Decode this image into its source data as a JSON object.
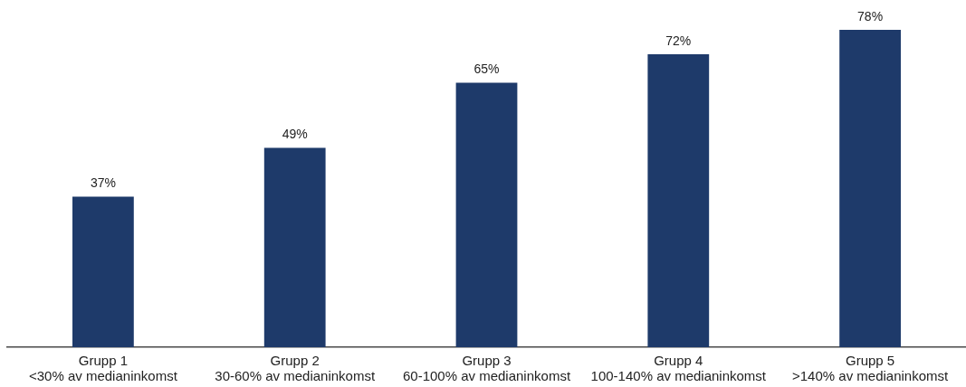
{
  "chart_data": {
    "type": "bar",
    "categories": [
      "Grupp 1\n<30% av medianinkomst",
      "Grupp 2\n30-60% av medianinkomst",
      "Grupp 3\n60-100% av medianinkomst",
      "Grupp 4\n100-140% av medianinkomst",
      "Grupp 5\n>140% av medianinkomst"
    ],
    "values": [
      37,
      49,
      65,
      72,
      78
    ],
    "color": "#1e3a6a",
    "value_labels": [
      "37%",
      "49%",
      "65%",
      "72%",
      "78%"
    ],
    "tick_labels": "x",
    "grid": false,
    "legend": false
  }
}
